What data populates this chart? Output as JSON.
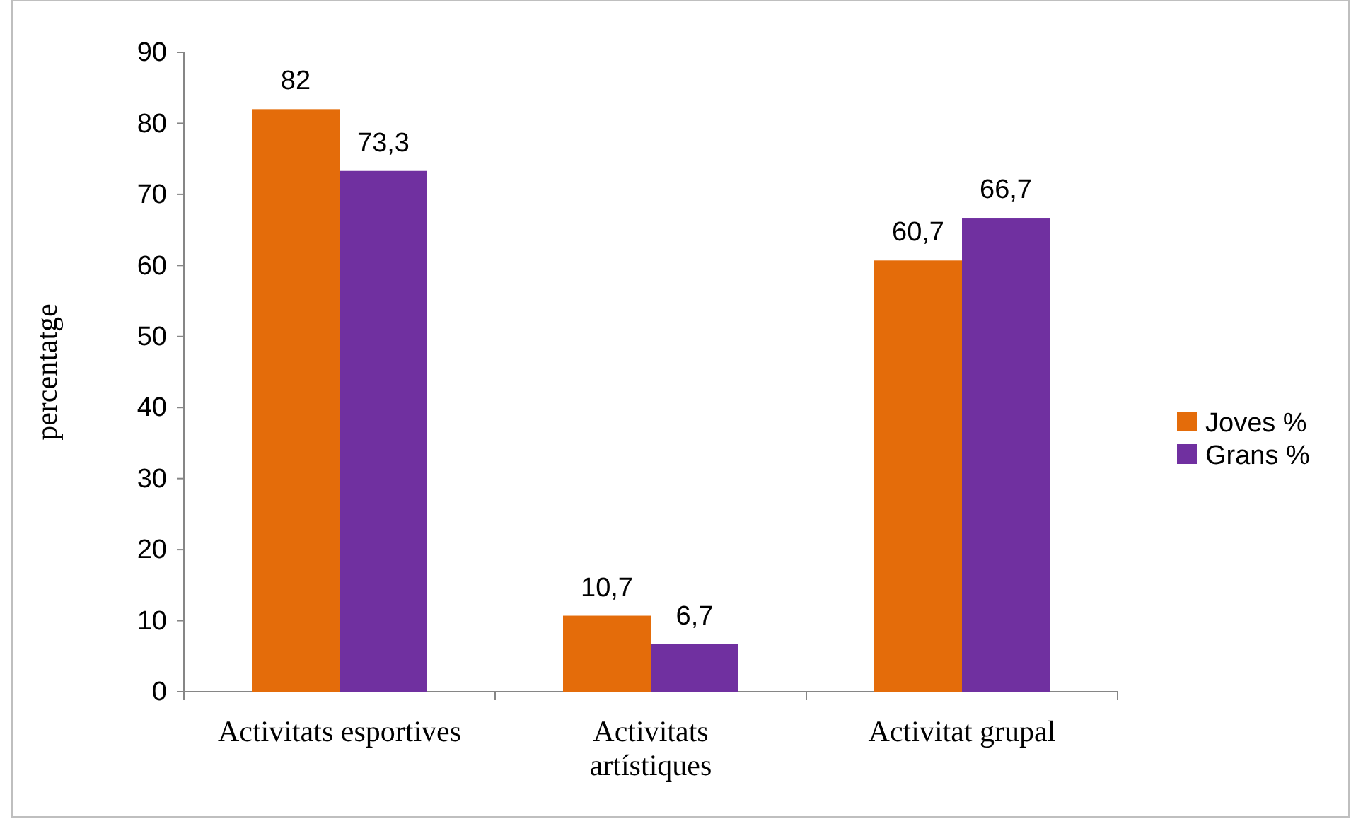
{
  "chart_data": {
    "type": "bar",
    "ylabel": "percentatge",
    "categories": [
      "Activitats esportives",
      "Activitats\nartístiques",
      "Activitat grupal"
    ],
    "series": [
      {
        "name": "Joves %",
        "color": "#e46c0a",
        "values": [
          82,
          10.7,
          60.7
        ],
        "value_labels": [
          "82",
          "10,7",
          "60,7"
        ]
      },
      {
        "name": "Grans %",
        "color": "#7030a0",
        "values": [
          73.3,
          6.7,
          66.7
        ],
        "value_labels": [
          "73,3",
          "6,7",
          "66,7"
        ]
      }
    ],
    "ylim": [
      0,
      90
    ],
    "yticks": [
      0,
      10,
      20,
      30,
      40,
      50,
      60,
      70,
      80,
      90
    ],
    "legend": "right"
  }
}
